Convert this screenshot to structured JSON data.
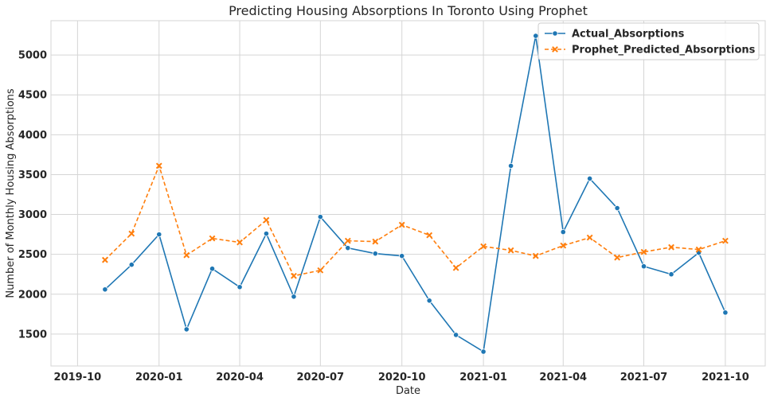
{
  "chart_data": {
    "type": "line",
    "title": "Predicting Housing Absorptions In Toronto Using Prophet",
    "xlabel": "Date",
    "ylabel": "Number of Monthly Housing Absorptions",
    "x_ticks": [
      "2019-10",
      "2020-01",
      "2020-04",
      "2020-07",
      "2020-10",
      "2021-01",
      "2021-04",
      "2021-07",
      "2021-10"
    ],
    "y_ticks": [
      1500,
      2000,
      2500,
      3000,
      3500,
      4000,
      4500,
      5000
    ],
    "xlim": [
      "2019-09-01",
      "2021-11-15"
    ],
    "ylim": [
      1100,
      5430
    ],
    "grid": true,
    "legend_position": "top-right",
    "x": [
      "2019-11-01",
      "2019-12-01",
      "2020-01-01",
      "2020-02-01",
      "2020-03-01",
      "2020-04-01",
      "2020-05-01",
      "2020-06-01",
      "2020-07-01",
      "2020-08-01",
      "2020-09-01",
      "2020-10-01",
      "2020-11-01",
      "2020-12-01",
      "2021-01-01",
      "2021-02-01",
      "2021-03-01",
      "2021-04-01",
      "2021-05-01",
      "2021-06-01",
      "2021-07-01",
      "2021-08-01",
      "2021-09-01",
      "2021-10-01"
    ],
    "series": [
      {
        "name": "Actual_Absorptions",
        "color": "#1f77b4",
        "marker": "circle",
        "dash": "solid",
        "values": [
          2060,
          2370,
          2750,
          1560,
          2320,
          2090,
          2760,
          1970,
          2970,
          2580,
          2510,
          2480,
          1920,
          1490,
          1280,
          3610,
          5240,
          2780,
          3450,
          3080,
          2350,
          2250,
          2520,
          1770
        ]
      },
      {
        "name": "Prophet_Predicted_Absorptions",
        "color": "#ff7f0e",
        "marker": "x",
        "dash": "dashed",
        "values": [
          2430,
          2760,
          3610,
          2490,
          2700,
          2650,
          2930,
          2230,
          2300,
          2670,
          2660,
          2870,
          2740,
          2330,
          2600,
          2550,
          2480,
          2610,
          2710,
          2460,
          2530,
          2590,
          2560,
          2670
        ]
      }
    ]
  }
}
